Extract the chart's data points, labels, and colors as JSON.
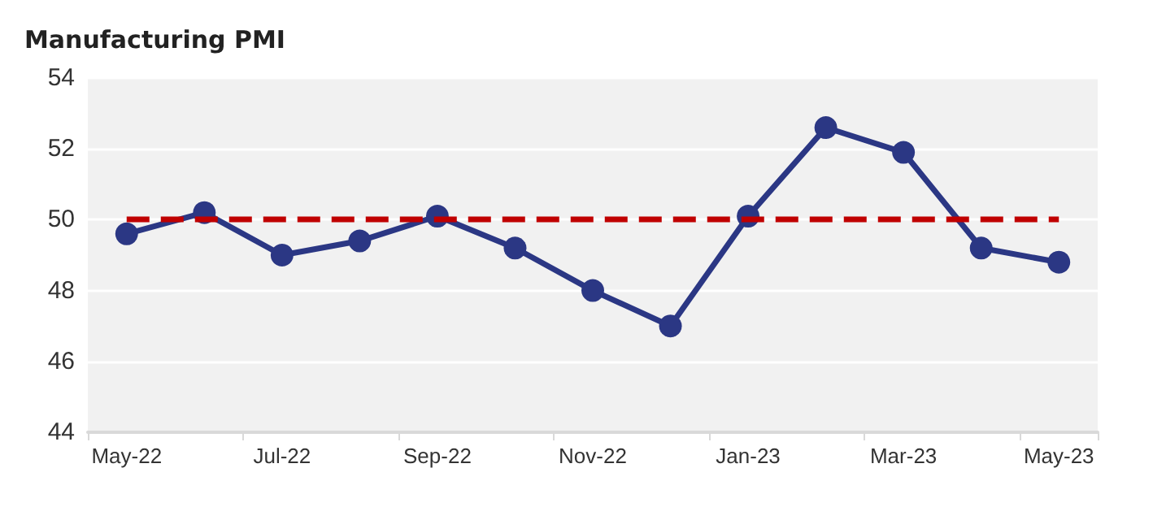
{
  "chart_data": {
    "type": "line",
    "title": "Manufacturing PMI",
    "categories": [
      "May-22",
      null,
      "Jul-22",
      null,
      "Sep-22",
      null,
      "Nov-22",
      null,
      "Jan-23",
      null,
      "Mar-23",
      null,
      "May-23"
    ],
    "series": [
      {
        "color": "#2b3784",
        "values": [
          49.6,
          50.2,
          49.0,
          49.4,
          50.1,
          49.2,
          48.0,
          47.0,
          50.1,
          52.6,
          51.9,
          49.2,
          48.8
        ]
      }
    ],
    "ylim": [
      44,
      54
    ],
    "yticks": [
      44,
      46,
      48,
      50,
      52,
      54
    ],
    "grid": "y",
    "marker": "circle",
    "line_style": "solid",
    "ref_lines": [
      {
        "axis": "y",
        "value": 50,
        "color": "#c00000",
        "line_style": "dashed"
      }
    ]
  }
}
